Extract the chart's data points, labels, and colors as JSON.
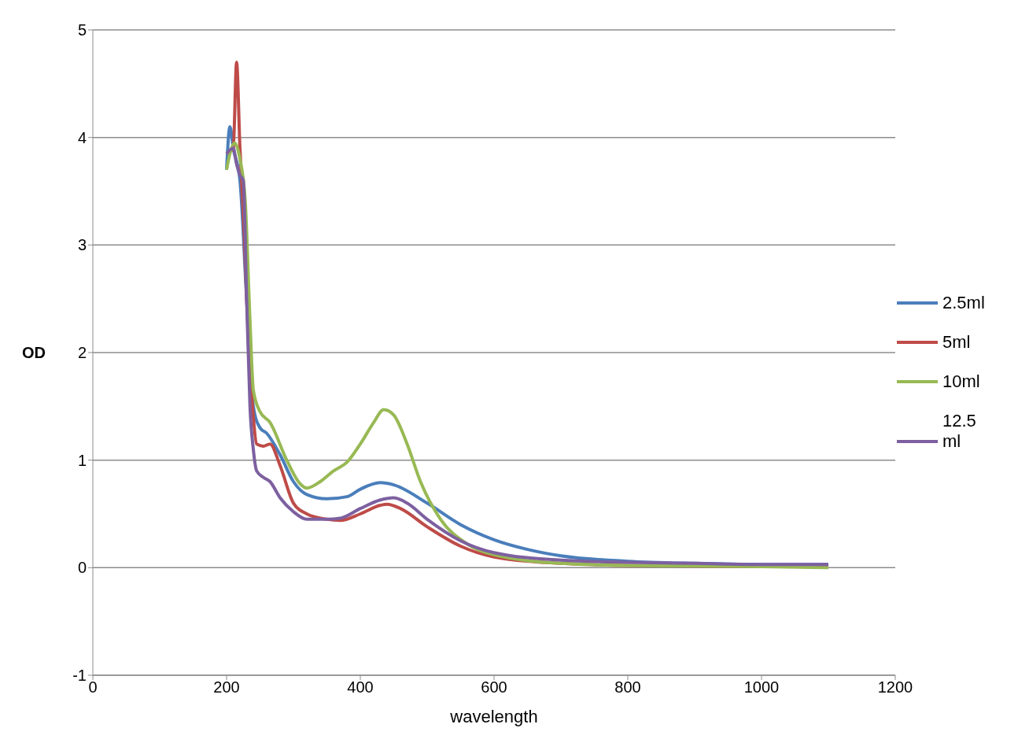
{
  "chart_data": {
    "type": "line",
    "xlabel": "wavelength",
    "ylabel": "OD",
    "xlim": [
      0,
      1200
    ],
    "xticks": [
      0,
      200,
      400,
      600,
      800,
      1000,
      1200
    ],
    "ylim": [
      -1,
      5
    ],
    "yticks": [
      -1,
      0,
      1,
      2,
      3,
      4,
      5
    ],
    "grid": "y",
    "legend": "right",
    "marker": "none",
    "line_style": "solid",
    "series": [
      {
        "name": "2.5ml",
        "color": "#4a7ebb",
        "x": [
          200,
          205,
          210,
          220,
          230,
          240,
          250,
          260,
          280,
          300,
          320,
          350,
          380,
          400,
          430,
          450,
          500,
          550,
          600,
          650,
          700,
          800,
          900,
          1000,
          1100
        ],
        "values": [
          3.7,
          4.1,
          3.9,
          3.6,
          2.5,
          1.5,
          1.3,
          1.25,
          1.05,
          0.8,
          0.68,
          0.64,
          0.66,
          0.73,
          0.79,
          0.77,
          0.6,
          0.4,
          0.26,
          0.17,
          0.11,
          0.06,
          0.04,
          0.03,
          0.03
        ]
      },
      {
        "name": "5ml",
        "color": "#be4b48",
        "x": [
          200,
          210,
          215,
          220,
          225,
          230,
          240,
          245,
          255,
          265,
          280,
          300,
          320,
          350,
          370,
          400,
          430,
          440,
          460,
          500,
          550,
          600,
          700,
          800,
          1000,
          1100
        ],
        "values": [
          3.85,
          3.9,
          4.7,
          3.9,
          3.3,
          2.5,
          1.4,
          1.15,
          1.13,
          1.15,
          0.95,
          0.6,
          0.5,
          0.45,
          0.44,
          0.5,
          0.58,
          0.59,
          0.55,
          0.38,
          0.2,
          0.1,
          0.04,
          0.02,
          0.01,
          0.01
        ]
      },
      {
        "name": "10ml",
        "color": "#98b954",
        "x": [
          200,
          205,
          212,
          220,
          228,
          235,
          240,
          250,
          265,
          290,
          310,
          320,
          340,
          360,
          380,
          400,
          420,
          435,
          450,
          470,
          490,
          520,
          560,
          600,
          700,
          800,
          1000,
          1100
        ],
        "values": [
          3.7,
          3.85,
          3.95,
          3.8,
          3.4,
          2.3,
          1.65,
          1.45,
          1.35,
          1.0,
          0.78,
          0.74,
          0.8,
          0.9,
          0.98,
          1.15,
          1.35,
          1.47,
          1.42,
          1.15,
          0.8,
          0.45,
          0.22,
          0.12,
          0.04,
          0.02,
          0.01,
          0.0
        ]
      },
      {
        "name": "12.5 ml",
        "color": "#7d60a0",
        "x": [
          200,
          210,
          215,
          220,
          225,
          230,
          235,
          240,
          245,
          255,
          265,
          280,
          300,
          320,
          350,
          370,
          400,
          430,
          450,
          470,
          500,
          550,
          600,
          700,
          800,
          900,
          1000,
          1100
        ],
        "values": [
          3.85,
          3.9,
          3.75,
          3.65,
          3.6,
          2.5,
          1.5,
          1.1,
          0.9,
          0.84,
          0.8,
          0.65,
          0.52,
          0.45,
          0.45,
          0.46,
          0.55,
          0.63,
          0.65,
          0.6,
          0.45,
          0.25,
          0.14,
          0.07,
          0.05,
          0.04,
          0.03,
          0.03
        ]
      }
    ]
  }
}
